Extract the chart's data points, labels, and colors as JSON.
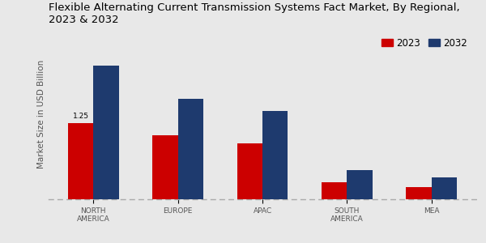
{
  "title": "Flexible Alternating Current Transmission Systems Fact Market, By Regional,\n2023 & 2032",
  "ylabel": "Market Size in USD Billion",
  "categories": [
    "NORTH\nAMERICA",
    "EUROPE",
    "APAC",
    "SOUTH\nAMERICA",
    "MEA"
  ],
  "values_2023": [
    1.25,
    1.05,
    0.92,
    0.28,
    0.2
  ],
  "values_2032": [
    2.2,
    1.65,
    1.45,
    0.48,
    0.36
  ],
  "color_2023": "#cc0000",
  "color_2032": "#1e3a6e",
  "annotation_value": "1.25",
  "background_color": "#e8e8e8",
  "bar_width": 0.3,
  "legend_labels": [
    "2023",
    "2032"
  ],
  "title_fontsize": 9.5,
  "axis_label_fontsize": 7.5,
  "tick_fontsize": 6.5,
  "legend_fontsize": 8.5,
  "red_bar_color": "#b30000",
  "ylim": [
    0,
    2.8
  ]
}
